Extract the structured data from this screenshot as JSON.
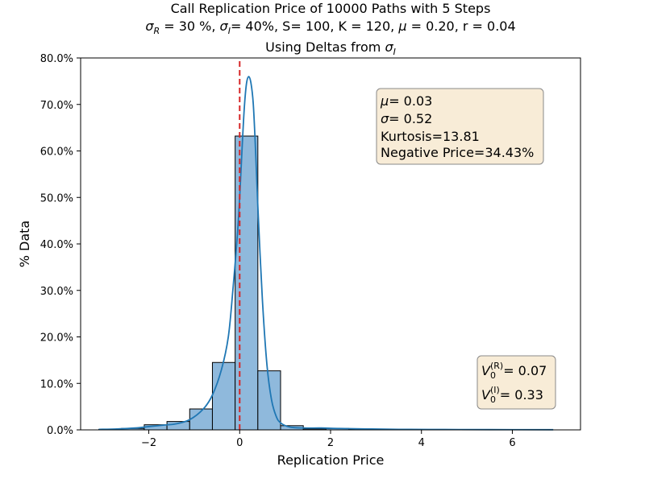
{
  "chart_data": {
    "type": "histogram",
    "title_line1": "Call Replication Price of 10000 Paths with 5 Steps",
    "title_line2": "σR = 30 %, σI= 40%, S= 100, K = 120, μ = 0.20, r = 0.04",
    "title_line2_parts": {
      "sigma_r": "σ",
      "sub_r": "R",
      "p1": " = 30 %, ",
      "sigma_i": "σ",
      "sub_i": "I",
      "p2": "= 40%, S= 100, K = 120, ",
      "mu": "μ",
      "p3": " = 0.20, r = 0.04"
    },
    "subtitle": "Using Deltas from σI",
    "subtitle_parts": {
      "text": "Using Deltas from ",
      "sigma": "σ",
      "sub": "I"
    },
    "xlabel": "Replication Price",
    "ylabel": "% Data",
    "xlim": [
      -3.5,
      7.5
    ],
    "ylim": [
      0,
      0.8
    ],
    "xticks": [
      -2,
      0,
      2,
      4,
      6
    ],
    "xtick_labels": [
      "−2",
      "0",
      "2",
      "4",
      "6"
    ],
    "yticks": [
      0,
      0.1,
      0.2,
      0.3,
      0.4,
      0.5,
      0.6,
      0.7,
      0.8
    ],
    "ytick_labels": [
      "0.0%",
      "10.0%",
      "20.0%",
      "30.0%",
      "40.0%",
      "50.0%",
      "60.0%",
      "70.0%",
      "80.0%"
    ],
    "bins": [
      {
        "x0": -3.1,
        "x1": -2.6,
        "value": 0.001
      },
      {
        "x0": -2.6,
        "x1": -2.1,
        "value": 0.003
      },
      {
        "x0": -2.1,
        "x1": -1.6,
        "value": 0.011
      },
      {
        "x0": -1.6,
        "x1": -1.1,
        "value": 0.018
      },
      {
        "x0": -1.1,
        "x1": -0.6,
        "value": 0.045
      },
      {
        "x0": -0.6,
        "x1": -0.1,
        "value": 0.145
      },
      {
        "x0": -0.1,
        "x1": 0.4,
        "value": 0.632
      },
      {
        "x0": 0.4,
        "x1": 0.9,
        "value": 0.127
      },
      {
        "x0": 0.9,
        "x1": 1.4,
        "value": 0.009
      },
      {
        "x0": 1.4,
        "x1": 1.9,
        "value": 0.002
      },
      {
        "x0": 1.9,
        "x1": 2.4,
        "value": 0.003
      },
      {
        "x0": 2.4,
        "x1": 2.9,
        "value": 0.001
      },
      {
        "x0": 2.9,
        "x1": 3.4,
        "value": 0.001
      }
    ],
    "kde": {
      "x": [
        -3.1,
        -2.7,
        -2.3,
        -2.0,
        -1.7,
        -1.4,
        -1.1,
        -0.8,
        -0.6,
        -0.4,
        -0.25,
        -0.15,
        -0.05,
        0.0,
        0.05,
        0.1,
        0.15,
        0.2,
        0.25,
        0.3,
        0.35,
        0.4,
        0.5,
        0.6,
        0.7,
        0.8,
        0.9,
        1.1,
        1.4,
        1.8,
        2.2,
        2.8,
        3.5,
        4.5,
        5.5,
        6.9
      ],
      "y": [
        0.001,
        0.002,
        0.004,
        0.007,
        0.01,
        0.013,
        0.022,
        0.045,
        0.075,
        0.13,
        0.2,
        0.3,
        0.42,
        0.5,
        0.6,
        0.69,
        0.745,
        0.76,
        0.745,
        0.7,
        0.6,
        0.48,
        0.28,
        0.14,
        0.065,
        0.03,
        0.015,
        0.006,
        0.004,
        0.004,
        0.003,
        0.002,
        0.001,
        0.0008,
        0.0005,
        0.0003
      ]
    },
    "vline": {
      "x": 0,
      "ymax": 0.795,
      "color": "#d62728",
      "style": "dashed"
    },
    "stats_box": {
      "mu_label": "μ",
      "mu_value": "= 0.03",
      "sigma_label": "σ",
      "sigma_value": "= 0.52",
      "kurtosis": "Kurtosis=13.81",
      "negative_price": "Negative Price=34.43%"
    },
    "v0_box": {
      "v": "V",
      "sub": "0",
      "sup_r": "(R)",
      "value_r": "= 0.07",
      "sup_i": "(I)",
      "value_i": "= 0.33"
    },
    "colors": {
      "bar": "#8fb9dc",
      "bar_edge": "#000000",
      "kde": "#1f77b4",
      "box_fill": "#f8ecd7",
      "box_edge": "#8a8a8a"
    }
  }
}
